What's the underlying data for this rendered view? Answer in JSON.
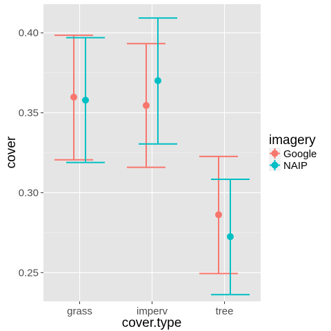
{
  "chart_data": {
    "type": "scatter",
    "title": "",
    "xlabel": "cover.type",
    "ylabel": "cover",
    "categories": [
      "grass",
      "imperv",
      "tree"
    ],
    "ylim": [
      0.232,
      0.418
    ],
    "yticks": [
      "0.25",
      "0.30",
      "0.35",
      "0.40"
    ],
    "grid": true,
    "error_bars": true,
    "legend": {
      "title": "imagery",
      "position": "right"
    },
    "series": [
      {
        "name": "Google",
        "color": "#F8766D",
        "values": [
          0.3598,
          0.3546,
          0.2862
        ],
        "lower": [
          0.3206,
          0.3159,
          0.2494
        ],
        "upper": [
          0.3985,
          0.3933,
          0.3227
        ]
      },
      {
        "name": "NAIP",
        "color": "#00BFC4",
        "values": [
          0.3579,
          0.3701,
          0.2725
        ],
        "lower": [
          0.3189,
          0.3305,
          0.2362
        ],
        "upper": [
          0.397,
          0.4093,
          0.3084
        ]
      }
    ]
  }
}
